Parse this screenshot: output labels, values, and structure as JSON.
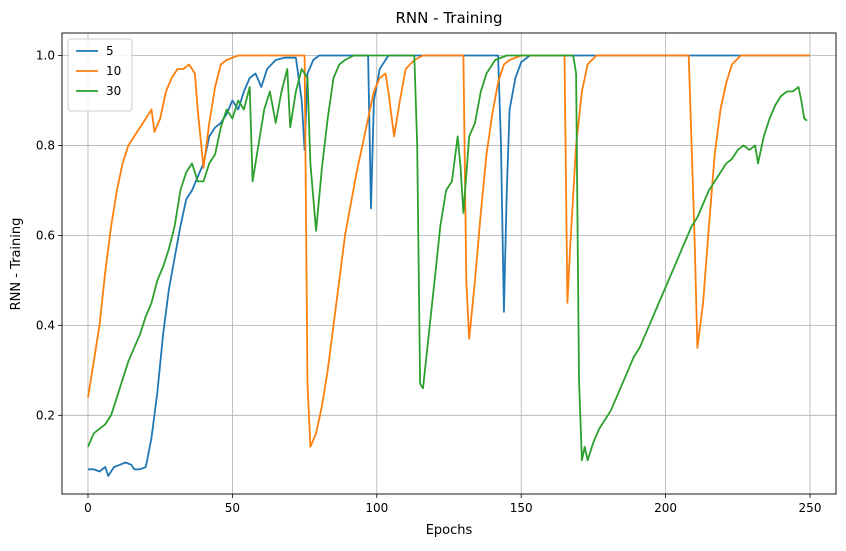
{
  "chart_data": {
    "type": "line",
    "title": "RNN - Training",
    "xlabel": "Epochs",
    "ylabel": "RNN - Training",
    "xlim": [
      -9,
      259
    ],
    "ylim": [
      0.025,
      1.05
    ],
    "xticks": [
      0,
      50,
      100,
      150,
      200,
      250
    ],
    "xtick_labels": [
      "0",
      "50",
      "100",
      "150",
      "200",
      "250"
    ],
    "yticks": [
      0.2,
      0.4,
      0.6,
      0.8,
      1.0
    ],
    "ytick_labels": [
      "0.2",
      "0.4",
      "0.6",
      "0.8",
      "1.0"
    ],
    "grid": true,
    "legend_position": "top-left",
    "series": [
      {
        "name": "5",
        "color": "#1f77b4",
        "points": [
          [
            0,
            0.08
          ],
          [
            2,
            0.08
          ],
          [
            4,
            0.075
          ],
          [
            6,
            0.085
          ],
          [
            7,
            0.065
          ],
          [
            9,
            0.085
          ],
          [
            11,
            0.09
          ],
          [
            13,
            0.095
          ],
          [
            15,
            0.09
          ],
          [
            16,
            0.08
          ],
          [
            18,
            0.08
          ],
          [
            20,
            0.085
          ],
          [
            22,
            0.15
          ],
          [
            24,
            0.25
          ],
          [
            26,
            0.38
          ],
          [
            28,
            0.48
          ],
          [
            30,
            0.55
          ],
          [
            32,
            0.62
          ],
          [
            34,
            0.68
          ],
          [
            36,
            0.7
          ],
          [
            38,
            0.73
          ],
          [
            40,
            0.76
          ],
          [
            42,
            0.82
          ],
          [
            44,
            0.84
          ],
          [
            46,
            0.85
          ],
          [
            48,
            0.87
          ],
          [
            50,
            0.9
          ],
          [
            52,
            0.88
          ],
          [
            54,
            0.92
          ],
          [
            56,
            0.95
          ],
          [
            58,
            0.96
          ],
          [
            60,
            0.93
          ],
          [
            62,
            0.97
          ],
          [
            65,
            0.99
          ],
          [
            68,
            0.995
          ],
          [
            72,
            0.995
          ],
          [
            74,
            0.9
          ],
          [
            75,
            0.79
          ],
          [
            76,
            0.96
          ],
          [
            78,
            0.99
          ],
          [
            80,
            1.0
          ],
          [
            95,
            1.0
          ],
          [
            97,
            1.0
          ],
          [
            98,
            0.66
          ],
          [
            99,
            0.9
          ],
          [
            101,
            0.97
          ],
          [
            104,
            1.0
          ],
          [
            142,
            1.0
          ],
          [
            143,
            0.8
          ],
          [
            144,
            0.43
          ],
          [
            145,
            0.7
          ],
          [
            146,
            0.88
          ],
          [
            148,
            0.95
          ],
          [
            150,
            0.985
          ],
          [
            153,
            1.0
          ],
          [
            250,
            1.0
          ]
        ]
      },
      {
        "name": "10",
        "color": "#ff7f0e",
        "points": [
          [
            0,
            0.24
          ],
          [
            2,
            0.32
          ],
          [
            4,
            0.4
          ],
          [
            6,
            0.52
          ],
          [
            8,
            0.62
          ],
          [
            10,
            0.7
          ],
          [
            12,
            0.76
          ],
          [
            14,
            0.8
          ],
          [
            16,
            0.82
          ],
          [
            18,
            0.84
          ],
          [
            20,
            0.86
          ],
          [
            22,
            0.88
          ],
          [
            23,
            0.83
          ],
          [
            25,
            0.86
          ],
          [
            27,
            0.92
          ],
          [
            29,
            0.95
          ],
          [
            31,
            0.97
          ],
          [
            33,
            0.97
          ],
          [
            35,
            0.98
          ],
          [
            37,
            0.96
          ],
          [
            38,
            0.88
          ],
          [
            40,
            0.75
          ],
          [
            42,
            0.85
          ],
          [
            44,
            0.93
          ],
          [
            46,
            0.98
          ],
          [
            48,
            0.99
          ],
          [
            52,
            1.0
          ],
          [
            75,
            1.0
          ],
          [
            76,
            0.27
          ],
          [
            77,
            0.13
          ],
          [
            79,
            0.16
          ],
          [
            81,
            0.22
          ],
          [
            83,
            0.3
          ],
          [
            85,
            0.4
          ],
          [
            87,
            0.5
          ],
          [
            89,
            0.6
          ],
          [
            91,
            0.67
          ],
          [
            93,
            0.74
          ],
          [
            95,
            0.8
          ],
          [
            97,
            0.86
          ],
          [
            99,
            0.92
          ],
          [
            101,
            0.95
          ],
          [
            103,
            0.96
          ],
          [
            104,
            0.92
          ],
          [
            106,
            0.82
          ],
          [
            108,
            0.9
          ],
          [
            110,
            0.97
          ],
          [
            113,
            0.99
          ],
          [
            116,
            1.0
          ],
          [
            130,
            1.0
          ],
          [
            131,
            0.5
          ],
          [
            132,
            0.37
          ],
          [
            134,
            0.5
          ],
          [
            136,
            0.65
          ],
          [
            138,
            0.78
          ],
          [
            140,
            0.87
          ],
          [
            142,
            0.94
          ],
          [
            144,
            0.98
          ],
          [
            146,
            0.99
          ],
          [
            150,
            1.0
          ],
          [
            165,
            1.0
          ],
          [
            166,
            0.45
          ],
          [
            167,
            0.58
          ],
          [
            169,
            0.8
          ],
          [
            171,
            0.92
          ],
          [
            173,
            0.98
          ],
          [
            176,
            1.0
          ],
          [
            208,
            1.0
          ],
          [
            210,
            0.6
          ],
          [
            211,
            0.35
          ],
          [
            213,
            0.45
          ],
          [
            215,
            0.62
          ],
          [
            217,
            0.78
          ],
          [
            219,
            0.88
          ],
          [
            221,
            0.94
          ],
          [
            223,
            0.98
          ],
          [
            226,
            1.0
          ],
          [
            250,
            1.0
          ]
        ]
      },
      {
        "name": "30",
        "color": "#2ca02c",
        "points": [
          [
            0,
            0.13
          ],
          [
            2,
            0.16
          ],
          [
            4,
            0.17
          ],
          [
            6,
            0.18
          ],
          [
            8,
            0.2
          ],
          [
            10,
            0.24
          ],
          [
            12,
            0.28
          ],
          [
            14,
            0.32
          ],
          [
            16,
            0.35
          ],
          [
            18,
            0.38
          ],
          [
            20,
            0.42
          ],
          [
            22,
            0.45
          ],
          [
            24,
            0.5
          ],
          [
            26,
            0.53
          ],
          [
            28,
            0.57
          ],
          [
            30,
            0.62
          ],
          [
            32,
            0.7
          ],
          [
            34,
            0.74
          ],
          [
            36,
            0.76
          ],
          [
            38,
            0.72
          ],
          [
            40,
            0.72
          ],
          [
            42,
            0.76
          ],
          [
            44,
            0.78
          ],
          [
            46,
            0.84
          ],
          [
            48,
            0.88
          ],
          [
            50,
            0.86
          ],
          [
            52,
            0.9
          ],
          [
            54,
            0.88
          ],
          [
            56,
            0.93
          ],
          [
            57,
            0.72
          ],
          [
            59,
            0.8
          ],
          [
            61,
            0.88
          ],
          [
            63,
            0.92
          ],
          [
            65,
            0.85
          ],
          [
            67,
            0.92
          ],
          [
            69,
            0.97
          ],
          [
            70,
            0.84
          ],
          [
            72,
            0.92
          ],
          [
            74,
            0.97
          ],
          [
            76,
            0.95
          ],
          [
            77,
            0.76
          ],
          [
            79,
            0.61
          ],
          [
            81,
            0.75
          ],
          [
            83,
            0.86
          ],
          [
            85,
            0.95
          ],
          [
            87,
            0.98
          ],
          [
            89,
            0.99
          ],
          [
            92,
            1.0
          ],
          [
            113,
            1.0
          ],
          [
            114,
            0.8
          ],
          [
            115,
            0.27
          ],
          [
            116,
            0.26
          ],
          [
            118,
            0.38
          ],
          [
            120,
            0.5
          ],
          [
            122,
            0.62
          ],
          [
            124,
            0.7
          ],
          [
            126,
            0.72
          ],
          [
            128,
            0.82
          ],
          [
            129,
            0.75
          ],
          [
            130,
            0.65
          ],
          [
            132,
            0.82
          ],
          [
            134,
            0.85
          ],
          [
            136,
            0.92
          ],
          [
            138,
            0.96
          ],
          [
            141,
            0.99
          ],
          [
            145,
            1.0
          ],
          [
            168,
            1.0
          ],
          [
            169,
            0.96
          ],
          [
            170,
            0.28
          ],
          [
            171,
            0.1
          ],
          [
            172,
            0.13
          ],
          [
            173,
            0.1
          ],
          [
            175,
            0.14
          ],
          [
            177,
            0.17
          ],
          [
            179,
            0.19
          ],
          [
            181,
            0.21
          ],
          [
            183,
            0.24
          ],
          [
            185,
            0.27
          ],
          [
            187,
            0.3
          ],
          [
            189,
            0.33
          ],
          [
            191,
            0.35
          ],
          [
            193,
            0.38
          ],
          [
            195,
            0.41
          ],
          [
            197,
            0.44
          ],
          [
            199,
            0.47
          ],
          [
            201,
            0.5
          ],
          [
            203,
            0.53
          ],
          [
            205,
            0.56
          ],
          [
            207,
            0.59
          ],
          [
            209,
            0.62
          ],
          [
            211,
            0.64
          ],
          [
            213,
            0.67
          ],
          [
            215,
            0.7
          ],
          [
            217,
            0.72
          ],
          [
            219,
            0.74
          ],
          [
            221,
            0.76
          ],
          [
            223,
            0.77
          ],
          [
            225,
            0.79
          ],
          [
            227,
            0.8
          ],
          [
            229,
            0.79
          ],
          [
            231,
            0.8
          ],
          [
            232,
            0.76
          ],
          [
            234,
            0.82
          ],
          [
            236,
            0.86
          ],
          [
            238,
            0.89
          ],
          [
            240,
            0.91
          ],
          [
            242,
            0.92
          ],
          [
            244,
            0.92
          ],
          [
            246,
            0.93
          ],
          [
            247,
            0.9
          ],
          [
            248,
            0.86
          ],
          [
            249,
            0.855
          ]
        ]
      }
    ]
  }
}
